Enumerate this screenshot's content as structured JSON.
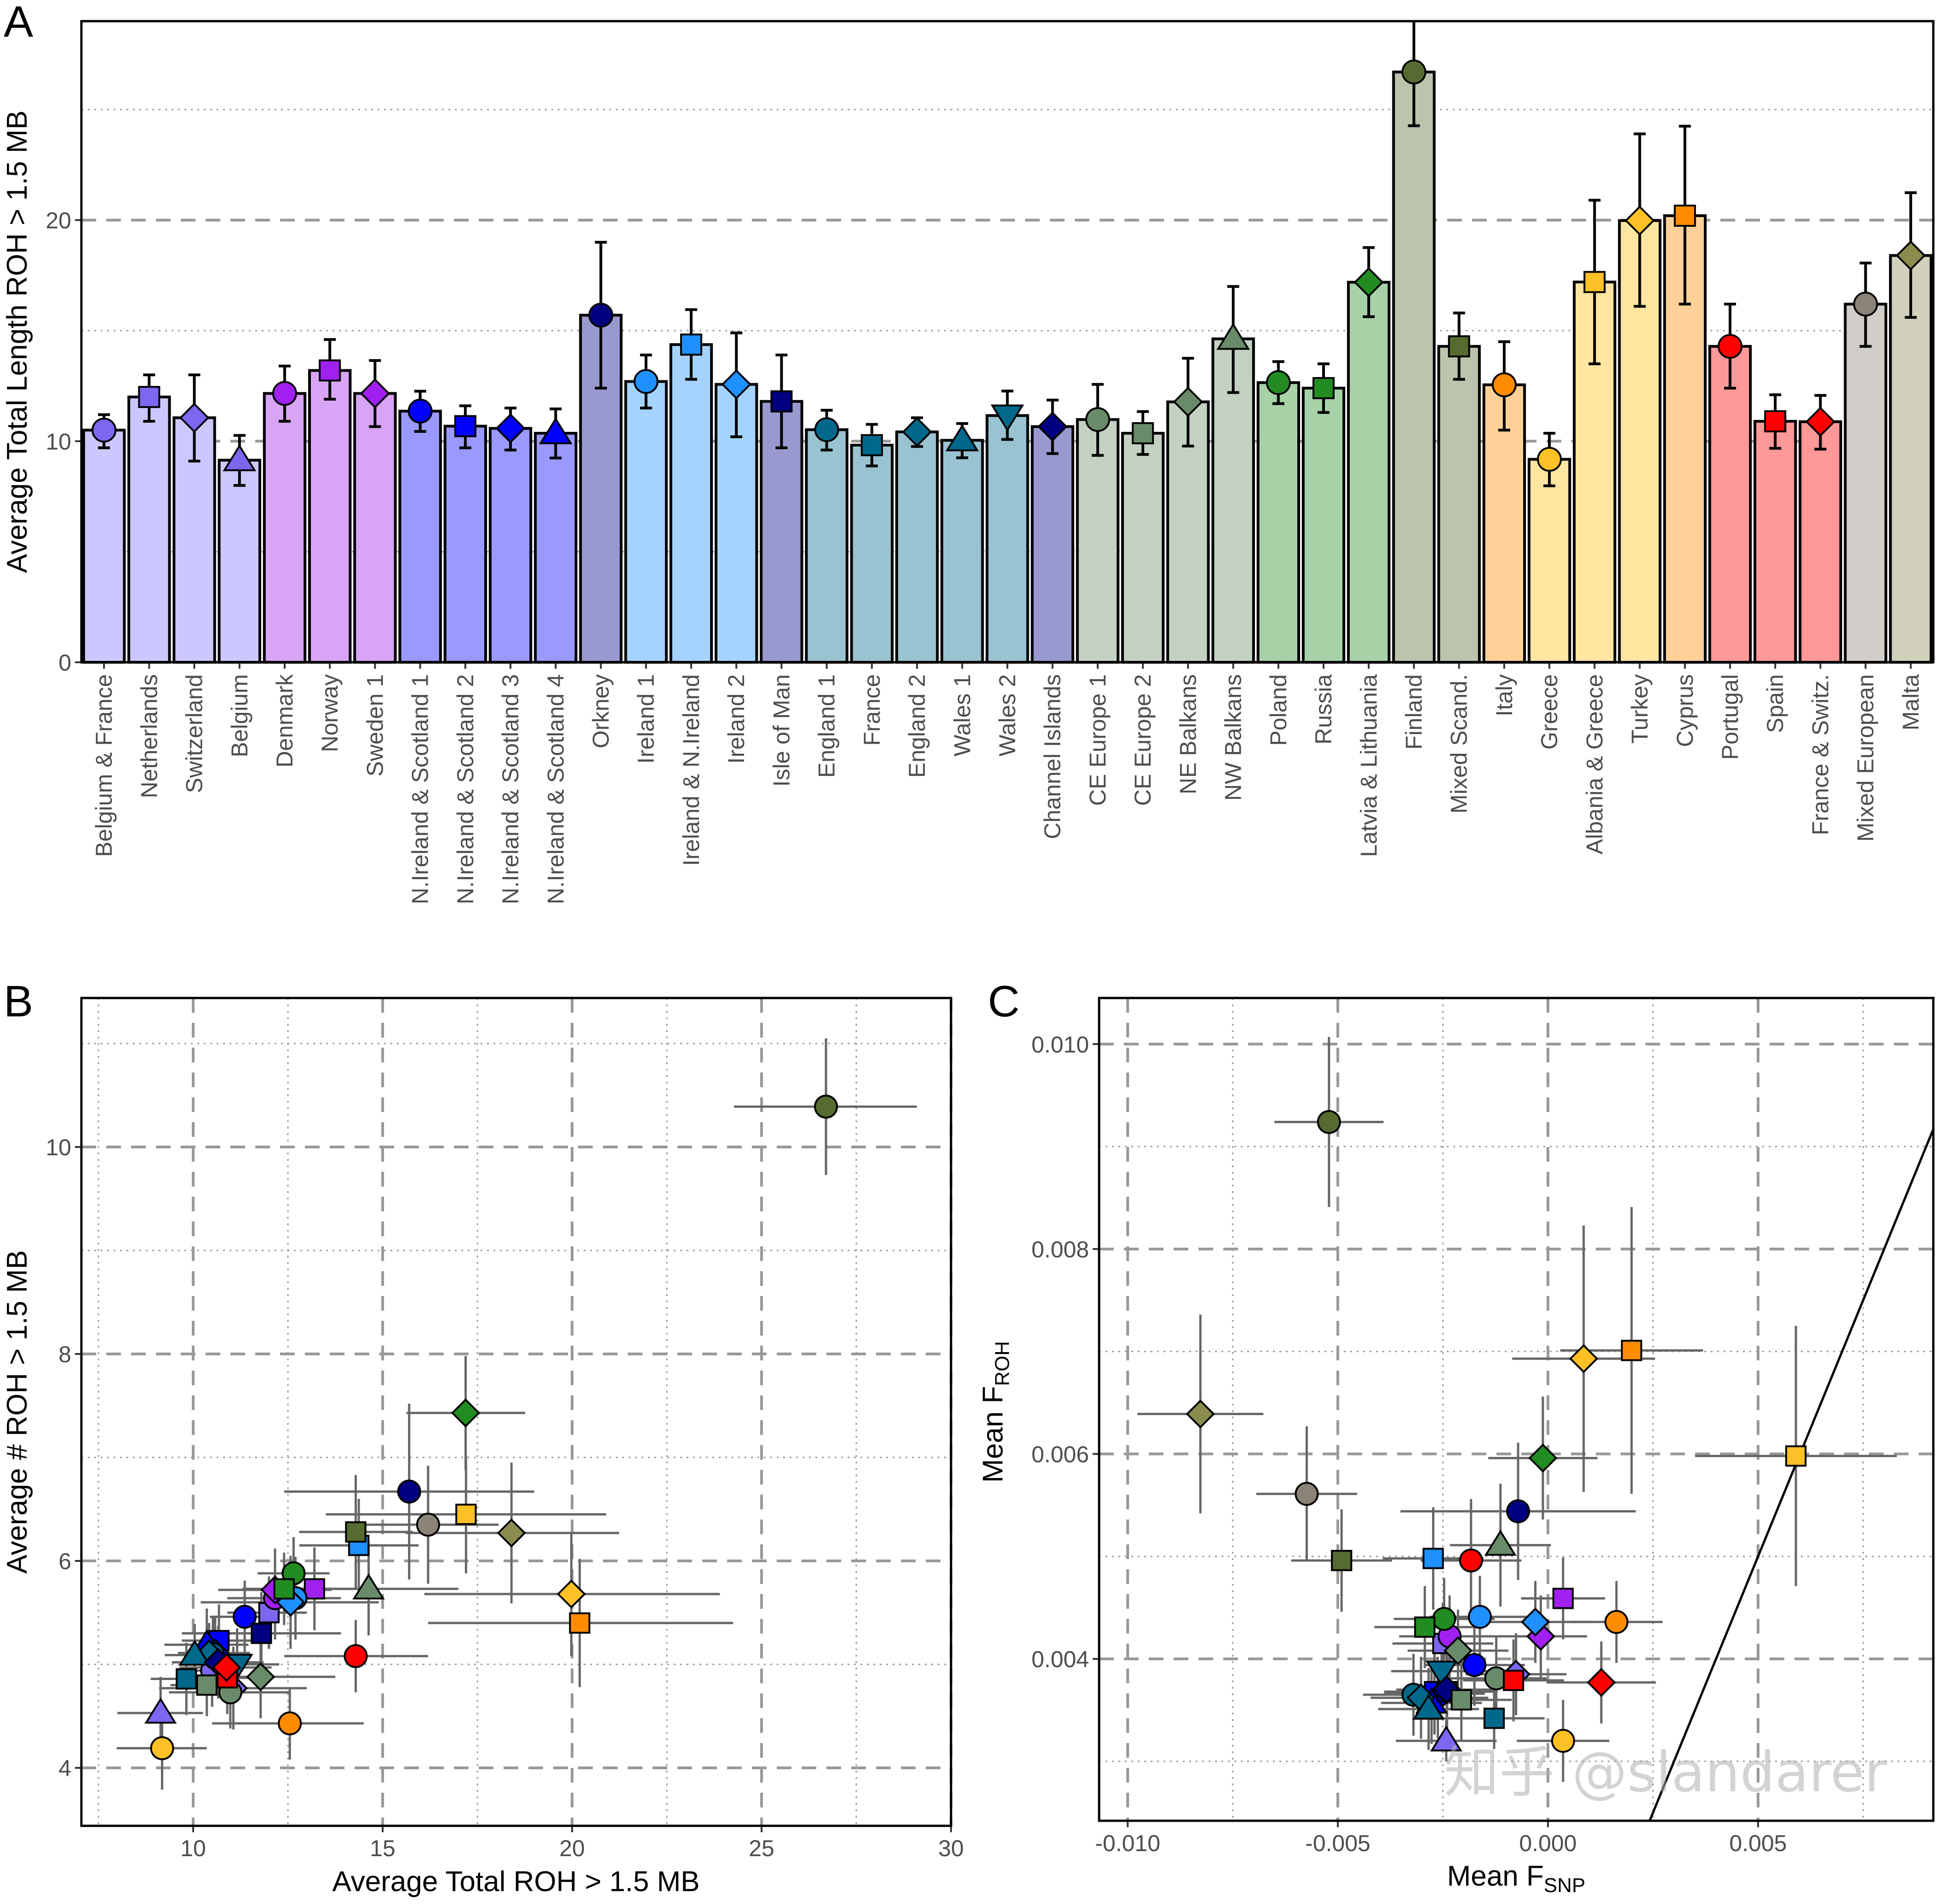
{
  "panels": {
    "a": "A",
    "b": "B",
    "c": "C"
  },
  "watermark": "知乎 @slandarer",
  "styles": {
    "shapes": [
      "circle",
      "square",
      "diamond",
      "triangle",
      "circle",
      "square",
      "diamond",
      "circle",
      "square",
      "diamond",
      "triangle",
      "circle",
      "circle",
      "square",
      "diamond",
      "square",
      "circle",
      "square",
      "diamond",
      "triangle",
      "triangle-down",
      "diamond",
      "circle",
      "square",
      "diamond",
      "triangle",
      "circle",
      "square",
      "diamond",
      "circle",
      "square",
      "circle",
      "circle",
      "square",
      "diamond",
      "square",
      "circle",
      "square",
      "diamond",
      "circle",
      "diamond"
    ],
    "marker_colors": [
      "#7B68EE",
      "#7B68EE",
      "#7B68EE",
      "#7B68EE",
      "#A020F0",
      "#A020F0",
      "#A020F0",
      "#0000FF",
      "#0000FF",
      "#0000FF",
      "#0000FF",
      "#000080",
      "#1E90FF",
      "#1E90FF",
      "#1E90FF",
      "#000080",
      "#00688B",
      "#00688B",
      "#00688B",
      "#00688B",
      "#00688B",
      "#000080",
      "#698B69",
      "#698B69",
      "#698B69",
      "#698B69",
      "#228B22",
      "#228B22",
      "#228B22",
      "#556B2F",
      "#556B2F",
      "#FF8C00",
      "#FFC125",
      "#FFC125",
      "#FFC125",
      "#FF8C00",
      "#FF0000",
      "#FF0000",
      "#FF0000",
      "#8B8378",
      "#8B8B4E"
    ],
    "bar_colors": [
      "#CCC8FF",
      "#CCC8FF",
      "#CCC8FF",
      "#CCC8FF",
      "#D8A4F5",
      "#D8A4F5",
      "#D8A4F5",
      "#9999FF",
      "#9999FF",
      "#9999FF",
      "#9999FF",
      "#9999D0",
      "#A5D3FF",
      "#A5D3FF",
      "#A5D3FF",
      "#9999D0",
      "#99C3D1",
      "#99C3D1",
      "#99C3D1",
      "#99C3D1",
      "#99C3D1",
      "#9999D0",
      "#C3D1C3",
      "#C3D1C3",
      "#C3D1C3",
      "#C3D1C3",
      "#A7D1A7",
      "#A7D1A7",
      "#A7D1A7",
      "#BBC4AC",
      "#BBC4AC",
      "#FFD199",
      "#FFE6A0",
      "#FFE6A0",
      "#FFE6A0",
      "#FFD199",
      "#FF9999",
      "#FF9999",
      "#FF9999",
      "#D1CDC9",
      "#D1D1BB"
    ],
    "grid_color": "#999999",
    "errorbar_color_scatter": "#666666"
  },
  "chart_data": [
    {
      "type": "bar",
      "panel": "A",
      "title": "",
      "xlabel": "",
      "ylabel": "Average Total Length ROH > 1.5 MB",
      "ylim": [
        0,
        29
      ],
      "yticks": [
        0,
        10,
        20
      ],
      "ytick_labels": [
        "0",
        "10",
        "20"
      ],
      "grid": "horizontal dashed major, dotted minor",
      "categories": [
        "Belgium & France",
        "Netherlands",
        "Switzerland",
        "Belgium",
        "Denmark",
        "Norway",
        "Sweden 1",
        "N.Ireland & Scotland 1",
        "N.Ireland & Scotland 2",
        "N.Ireland & Scotland 3",
        "N.Ireland & Scotland 4",
        "Orkney",
        "Ireland 1",
        "Ireland & N.Ireland",
        "Ireland 2",
        "Isle of Man",
        "England 1",
        "France",
        "England 2",
        "Wales 1",
        "Wales 2",
        "Channel Islands",
        "CE Europe 1",
        "CE Europe 2",
        "NE Balkans",
        "NW Balkans",
        "Poland",
        "Russia",
        "Latvia & Lithuania",
        "Finland",
        "Mixed Scand.",
        "Italy",
        "Greece",
        "Albania & Greece",
        "Turkey",
        "Cyprus",
        "Portugal",
        "Spain",
        "France & Switz.",
        "Mixed European",
        "Malta"
      ],
      "values": [
        10.5,
        12.0,
        11.06,
        9.14,
        12.16,
        13.2,
        12.16,
        11.36,
        10.68,
        10.58,
        10.36,
        15.7,
        12.7,
        14.37,
        12.57,
        11.8,
        10.52,
        9.82,
        10.42,
        10.04,
        11.16,
        10.66,
        10.98,
        10.36,
        11.78,
        14.63,
        12.65,
        12.4,
        17.19,
        26.7,
        14.29,
        12.55,
        9.18,
        17.2,
        19.98,
        20.2,
        14.29,
        10.9,
        10.88,
        16.2,
        18.4
      ],
      "err_low": [
        9.7,
        10.9,
        9.1,
        8.0,
        10.9,
        11.9,
        10.66,
        10.44,
        9.7,
        9.6,
        9.24,
        12.4,
        11.5,
        12.8,
        10.2,
        9.7,
        9.6,
        8.88,
        9.76,
        9.25,
        10.08,
        9.44,
        9.36,
        9.4,
        9.78,
        12.2,
        11.7,
        11.3,
        15.63,
        24.27,
        12.8,
        10.5,
        7.98,
        13.5,
        16.1,
        16.2,
        12.4,
        9.68,
        9.64,
        14.29,
        15.6
      ],
      "err_high": [
        11.2,
        13.0,
        13.0,
        10.26,
        13.4,
        14.6,
        13.65,
        12.26,
        11.6,
        11.5,
        11.46,
        19.0,
        13.9,
        15.95,
        14.9,
        13.9,
        11.4,
        10.76,
        11.06,
        10.8,
        12.27,
        11.86,
        12.57,
        11.34,
        13.75,
        17.0,
        13.6,
        13.5,
        18.76,
        29.1,
        15.8,
        14.5,
        10.36,
        20.9,
        23.9,
        24.25,
        16.2,
        12.1,
        12.07,
        18.06,
        21.24
      ]
    },
    {
      "type": "scatter",
      "panel": "B",
      "xlabel": "Average Total ROH > 1.5 MB",
      "ylabel": "Average # ROH > 1.5 MB",
      "xlim": [
        7.05,
        30
      ],
      "ylim": [
        3.44,
        11.44
      ],
      "xticks": [
        10,
        15,
        20,
        25,
        30
      ],
      "xtick_labels": [
        "10",
        "15",
        "20",
        "25",
        "30"
      ],
      "yticks": [
        4,
        6,
        8,
        10
      ],
      "ytick_labels": [
        "4",
        "6",
        "8",
        "10"
      ],
      "grid": true,
      "x": [
        10.5,
        12.0,
        11.06,
        9.14,
        12.16,
        13.2,
        12.16,
        11.36,
        10.68,
        10.58,
        10.36,
        15.7,
        12.7,
        14.37,
        12.57,
        11.8,
        10.52,
        9.82,
        10.42,
        10.04,
        11.16,
        10.66,
        10.98,
        10.36,
        11.78,
        14.63,
        12.65,
        12.4,
        17.19,
        26.7,
        14.29,
        12.55,
        9.18,
        17.2,
        19.98,
        20.2,
        14.29,
        10.9,
        10.88,
        16.2,
        18.4
      ],
      "y": [
        4.94,
        5.5,
        4.77,
        4.53,
        5.64,
        5.73,
        5.72,
        5.46,
        5.23,
        5.11,
        5.19,
        6.67,
        5.64,
        6.15,
        5.6,
        5.3,
        5.1,
        4.86,
        5.1,
        5.09,
        5.0,
        5.02,
        4.73,
        4.8,
        4.88,
        5.73,
        5.88,
        5.73,
        7.43,
        10.39,
        6.28,
        4.43,
        4.19,
        6.45,
        5.68,
        5.4,
        5.08,
        4.87,
        4.97,
        6.35,
        6.27
      ],
      "y_err": [
        0.35,
        0.35,
        0.4,
        0.35,
        0.4,
        0.4,
        0.4,
        0.35,
        0.35,
        0.35,
        0.35,
        0.85,
        0.4,
        0.45,
        0.45,
        0.4,
        0.35,
        0.35,
        0.3,
        0.3,
        0.35,
        0.35,
        0.35,
        0.3,
        0.4,
        0.45,
        0.35,
        0.35,
        0.55,
        0.66,
        0.55,
        0.35,
        0.4,
        0.57,
        0.6,
        0.62,
        0.35,
        0.35,
        0.35,
        0.57,
        0.68
      ]
    },
    {
      "type": "scatter",
      "panel": "C",
      "xlabel": "Mean F",
      "xlabel_sub": "SNP",
      "ylabel": "Mean F",
      "ylabel_sub": "ROH",
      "xlim": [
        -0.01068,
        0.00917
      ],
      "ylim": [
        0.00242,
        0.01045
      ],
      "xticks": [
        -0.01,
        -0.005,
        0,
        0.005
      ],
      "xtick_labels": [
        "-0.010",
        "-0.005",
        "0.000",
        "0.005"
      ],
      "yticks": [
        0.004,
        0.006,
        0.008,
        0.01
      ],
      "ytick_labels": [
        "0.004",
        "0.006",
        "0.008",
        "0.010"
      ],
      "grid": true,
      "reference_line": "y = x",
      "x": [
        -0.0027,
        -0.0025,
        -0.00076,
        -0.00242,
        -0.00234,
        0.00036,
        -0.00017,
        -0.00175,
        -0.0027,
        -0.00262,
        -0.00277,
        -0.00071,
        -0.00162,
        -0.00273,
        -0.0003,
        -0.0024,
        -0.0032,
        -0.00128,
        -0.00302,
        -0.00284,
        -0.00253,
        -0.00241,
        -0.00123,
        -0.00206,
        -0.00214,
        -0.00113,
        -0.00247,
        -0.00293,
        -0.00012,
        -0.00521,
        -0.00491,
        0.00163,
        0.00036,
        0.0059,
        0.00085,
        0.00199,
        -0.00183,
        -0.00082,
        0.00127,
        -0.00574,
        -0.00827
      ],
      "y": [
        0.00366,
        0.00415,
        0.00385,
        0.0032,
        0.00422,
        0.00459,
        0.00422,
        0.00394,
        0.00368,
        0.00362,
        0.00357,
        0.00544,
        0.00441,
        0.00498,
        0.00436,
        0.00368,
        0.00365,
        0.00342,
        0.00362,
        0.00351,
        0.00388,
        0.0037,
        0.00381,
        0.0036,
        0.00408,
        0.00511,
        0.00439,
        0.00431,
        0.00596,
        0.00924,
        0.00496,
        0.00436,
        0.0032,
        0.00598,
        0.00693,
        0.00701,
        0.00496,
        0.00379,
        0.00377,
        0.00561,
        0.00639
      ],
      "x_err": [
        0.0012,
        0.0012,
        0.0012,
        0.0012,
        0.0012,
        0.001,
        0.0011,
        0.0012,
        0.0012,
        0.0012,
        0.0012,
        0.0028,
        0.0012,
        0.0012,
        0.0012,
        0.0012,
        0.0012,
        0.0012,
        0.0012,
        0.0012,
        0.0012,
        0.0012,
        0.0012,
        0.0012,
        0.0012,
        0.0012,
        0.0012,
        0.0012,
        0.0013,
        0.0013,
        0.0012,
        0.0011,
        0.0011,
        0.0024,
        0.0017,
        0.0017,
        0.0012,
        0.0012,
        0.0013,
        0.0012,
        0.0015
      ],
      "y_err": [
        0.0004,
        0.0004,
        0.0004,
        0.0002,
        0.0004,
        0.0004,
        0.0004,
        0.0004,
        0.0004,
        0.0004,
        0.0004,
        0.00067,
        0.0004,
        0.0005,
        0.0004,
        0.0004,
        0.0004,
        0.0003,
        0.0004,
        0.0004,
        0.0004,
        0.0004,
        0.0004,
        0.0004,
        0.0004,
        0.0006,
        0.0004,
        0.0004,
        0.0006,
        0.00083,
        0.0005,
        0.0004,
        0.0004,
        0.00127,
        0.0013,
        0.0014,
        0.0006,
        0.0004,
        0.0004,
        0.00066,
        0.00097
      ]
    }
  ]
}
